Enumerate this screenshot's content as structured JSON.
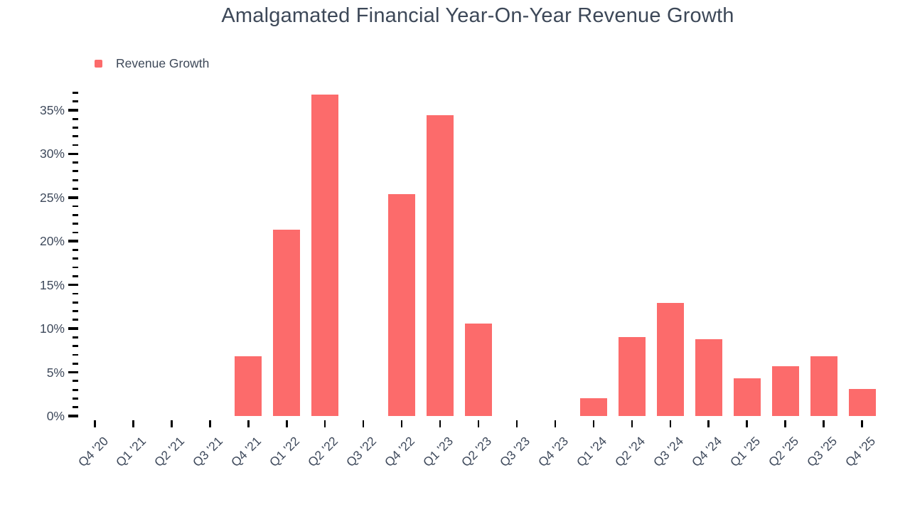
{
  "chart_data": {
    "type": "bar",
    "title": "Amalgamated Financial Year-On-Year Revenue Growth",
    "legend": [
      {
        "label": "Revenue Growth",
        "color": "#fc6b6b"
      }
    ],
    "legend_position": "top-left",
    "categories": [
      "Q4 '20",
      "Q1 '21",
      "Q2 '21",
      "Q3 '21",
      "Q4 '21",
      "Q1 '22",
      "Q2 '22",
      "Q3 '22",
      "Q4 '22",
      "Q1 '23",
      "Q2 '23",
      "Q3 '23",
      "Q4 '23",
      "Q1 '24",
      "Q2 '24",
      "Q3 '24",
      "Q4 '24",
      "Q1 '25",
      "Q2 '25",
      "Q3 '25",
      "Q4 '25"
    ],
    "series": [
      {
        "name": "Revenue Growth",
        "values": [
          null,
          null,
          null,
          null,
          6.8,
          21.3,
          36.8,
          null,
          25.4,
          34.4,
          10.6,
          null,
          null,
          2.0,
          9.0,
          12.9,
          8.8,
          4.3,
          5.7,
          6.8,
          3.1
        ]
      }
    ],
    "unit": "%",
    "xlabel": "",
    "ylabel": "",
    "y_axis": {
      "min": 0,
      "max": 37,
      "major_step": 5,
      "minor_step": 1,
      "tick_labels": [
        "0%",
        "5%",
        "10%",
        "15%",
        "20%",
        "25%",
        "30%",
        "35%"
      ]
    },
    "grid": false,
    "colors": {
      "bar": "#fc6b6b",
      "text": "#3d4858",
      "axis_label": "#3f4a5c",
      "tick": "#000000",
      "background": "#ffffff"
    }
  }
}
